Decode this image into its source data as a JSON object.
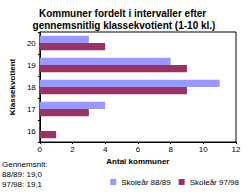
{
  "chart_data": {
    "type": "bar",
    "orientation": "horizontal",
    "title": "Kommuner fordelt i intervaller efter gennemsnitlig klassekvotient (1-10 kl.)",
    "x_label": "Antal kommuner",
    "y_label": "Klassekvotient",
    "categories": [
      "16",
      "17",
      "18",
      "19",
      "20"
    ],
    "series": [
      {
        "name": "Skoleår 88/89",
        "color": "#9999ff",
        "values": [
          0,
          4,
          11,
          8,
          3
        ]
      },
      {
        "name": "Skoleår 97/98",
        "color": "#993366",
        "values": [
          1,
          3,
          9,
          9,
          4
        ]
      }
    ],
    "xlim": [
      0,
      12
    ],
    "xticks": [
      0,
      2,
      4,
      6,
      8,
      10,
      12
    ],
    "grid": false,
    "legend": "bottom right",
    "annotations": [
      "Gennemsnit:",
      "88/89: 19,0",
      "97/98: 19,1"
    ]
  }
}
